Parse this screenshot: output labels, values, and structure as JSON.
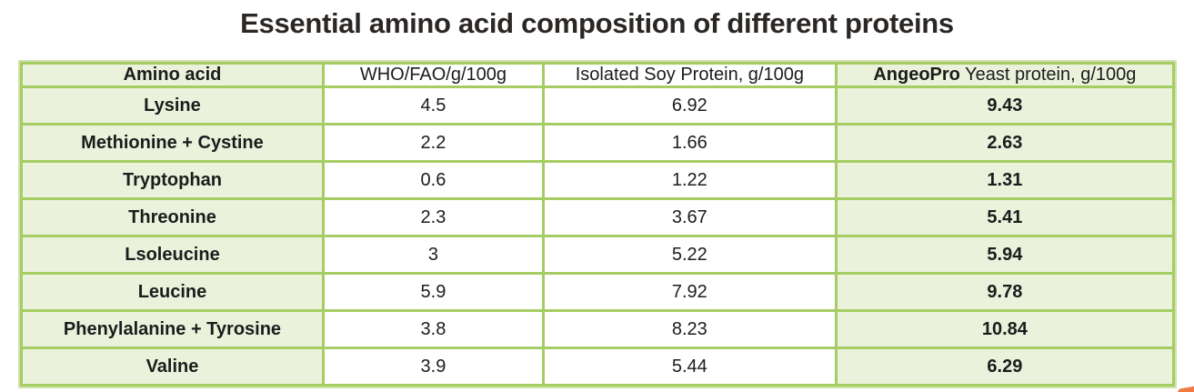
{
  "page": {
    "title": "Essential amino acid composition of different proteins"
  },
  "colors": {
    "table_border_green": "#a6cd64",
    "table_outer_light_green": "#cfe2ab",
    "cell_fill_green": "#eaf2dc",
    "text_dark": "#1c1c1c",
    "corner_accent_orange": "#ee7c44"
  },
  "table": {
    "headers": {
      "amino_acid": "Amino acid",
      "who_fao": "WHO/FAO/g/100g",
      "soy": "Isolated Soy Protein, g/100g",
      "angeopro_brand": "AngeoPro",
      "angeopro_rest": " Yeast protein, g/100g"
    },
    "rows": [
      {
        "amino_acid": "Lysine",
        "who_fao": "4.5",
        "soy": "6.92",
        "angeopro": "9.43"
      },
      {
        "amino_acid": "Methionine + Cystine",
        "who_fao": "2.2",
        "soy": "1.66",
        "angeopro": "2.63"
      },
      {
        "amino_acid": "Tryptophan",
        "who_fao": "0.6",
        "soy": "1.22",
        "angeopro": "1.31"
      },
      {
        "amino_acid": "Threonine",
        "who_fao": "2.3",
        "soy": "3.67",
        "angeopro": "5.41"
      },
      {
        "amino_acid": "Lsoleucine",
        "who_fao": "3",
        "soy": "5.22",
        "angeopro": "5.94"
      },
      {
        "amino_acid": "Leucine",
        "who_fao": "5.9",
        "soy": "7.92",
        "angeopro": "9.78"
      },
      {
        "amino_acid": "Phenylalanine + Tyrosine",
        "who_fao": "3.8",
        "soy": "8.23",
        "angeopro": "10.84"
      },
      {
        "amino_acid": "Valine",
        "who_fao": "3.9",
        "soy": "5.44",
        "angeopro": "6.29"
      }
    ]
  }
}
